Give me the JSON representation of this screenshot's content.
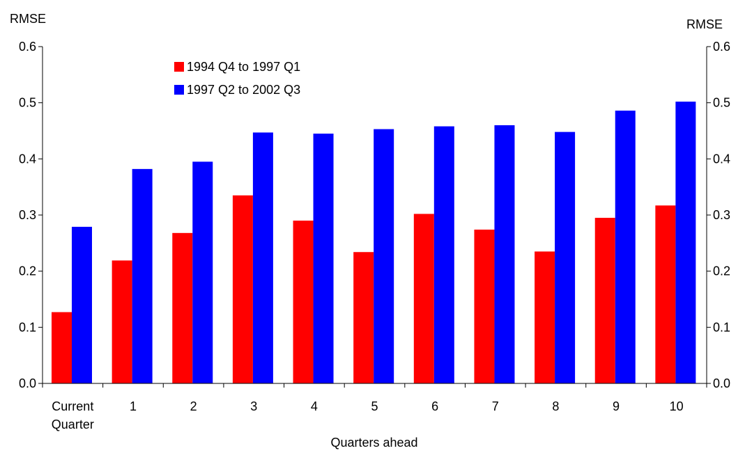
{
  "chart_data": {
    "type": "bar",
    "xlabel": "Quarters ahead",
    "ylabel_left": "RMSE",
    "ylabel_right": "RMSE",
    "ylim": [
      0,
      0.6
    ],
    "yticks": [
      "0.0",
      "0.1",
      "0.2",
      "0.3",
      "0.4",
      "0.5",
      "0.6"
    ],
    "categories": [
      "Current Quarter",
      "1",
      "2",
      "3",
      "4",
      "5",
      "6",
      "7",
      "8",
      "9",
      "10"
    ],
    "category_lines": [
      [
        "Current",
        "Quarter"
      ],
      [
        "1"
      ],
      [
        "2"
      ],
      [
        "3"
      ],
      [
        "4"
      ],
      [
        "5"
      ],
      [
        "6"
      ],
      [
        "7"
      ],
      [
        "8"
      ],
      [
        "9"
      ],
      [
        "10"
      ]
    ],
    "series": [
      {
        "name": "1994 Q4 to 1997 Q1",
        "color": "#ff0000",
        "values": [
          0.127,
          0.219,
          0.268,
          0.335,
          0.29,
          0.234,
          0.302,
          0.274,
          0.235,
          0.295,
          0.317
        ]
      },
      {
        "name": "1997 Q2 to 2002 Q3",
        "color": "#0000ff",
        "values": [
          0.279,
          0.382,
          0.395,
          0.447,
          0.445,
          0.453,
          0.458,
          0.46,
          0.448,
          0.486,
          0.502
        ]
      }
    ],
    "grid": false,
    "legend_position": "top-left"
  }
}
